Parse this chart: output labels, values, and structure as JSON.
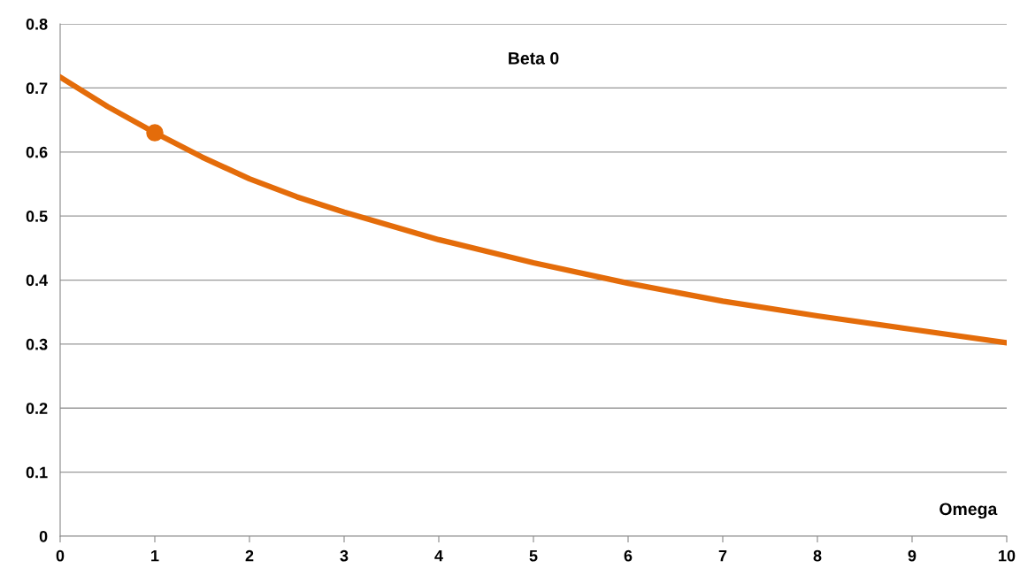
{
  "chart_data": {
    "type": "line",
    "title": "Beta 0",
    "xlabel": "Omega",
    "xlim": [
      0,
      10
    ],
    "xticks": [
      0,
      1,
      2,
      3,
      4,
      5,
      6,
      7,
      8,
      9,
      10
    ],
    "ylim": [
      0,
      0.8
    ],
    "yticks": [
      0,
      0.1,
      0.2,
      0.3,
      0.4,
      0.5,
      0.6,
      0.7,
      0.8
    ],
    "grid": "y",
    "series": [
      {
        "color": "#e46c0a",
        "marker": "none",
        "x": [
          0,
          0.5,
          1,
          1.5,
          2,
          2.5,
          3,
          4,
          5,
          6,
          7,
          8,
          9,
          10
        ],
        "values": [
          0.717,
          0.671,
          0.63,
          0.592,
          0.558,
          0.53,
          0.506,
          0.463,
          0.427,
          0.395,
          0.367,
          0.344,
          0.323,
          0.302
        ]
      },
      {
        "type": "scatter",
        "color": "#e46c0a",
        "marker": "circle",
        "x": [
          1
        ],
        "values": [
          0.63
        ]
      }
    ]
  }
}
